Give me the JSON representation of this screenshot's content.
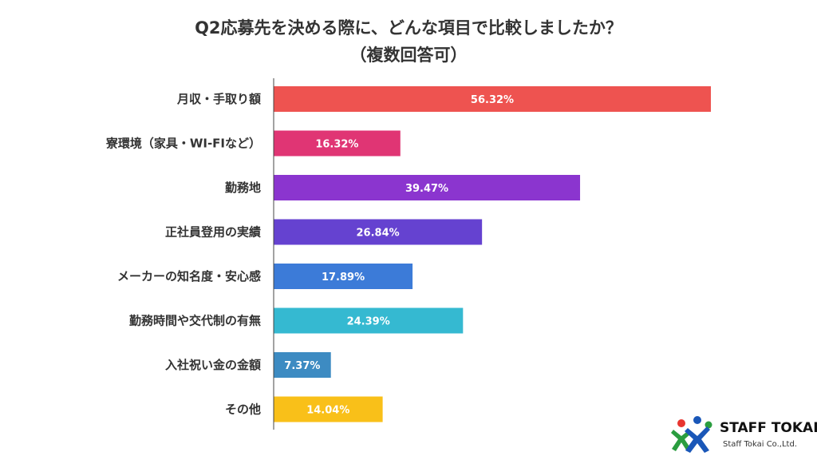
{
  "chart_data": {
    "type": "bar",
    "orientation": "horizontal",
    "title": "Q2応募先を決める際に、どんな項目で比較しましたか？",
    "subtitle": "（複数回答可）",
    "categories": [
      "月収・手取り額",
      "寮環境（家具・WI-FIなど）",
      "勤務地",
      "正社員登用の実績",
      "メーカーの知名度・安心感",
      "勤務時間や交代制の有無",
      "入社祝い金の金額",
      "その他"
    ],
    "values": [
      56.32,
      16.32,
      39.47,
      26.84,
      17.89,
      24.39,
      7.37,
      14.04
    ],
    "value_labels": [
      "56.32%",
      "16.32%",
      "39.47%",
      "26.84%",
      "17.89%",
      "24.39%",
      "7.37%",
      "14.04%"
    ],
    "colors": [
      "#ee5350",
      "#e03574",
      "#8b35cf",
      "#6542d0",
      "#3c7bd8",
      "#35b9d1",
      "#3d8bc2",
      "#f9c019"
    ],
    "xlim": [
      0,
      56.32
    ],
    "grid": false,
    "legend": "none"
  },
  "logo": {
    "name": "STAFF TOKAI",
    "sub": "Staff Tokai Co.,Ltd."
  }
}
